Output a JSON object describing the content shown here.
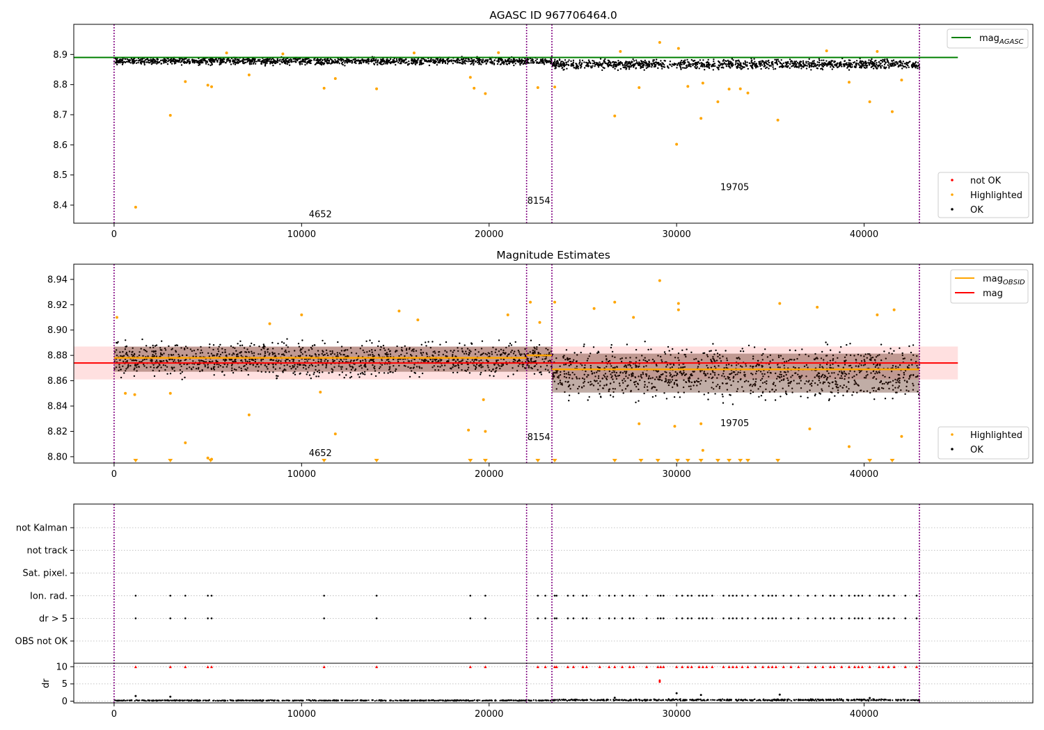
{
  "chart_data": [
    {
      "type": "scatter",
      "title": "AGASC ID 967706464.0",
      "xlim": [
        -2150,
        49000
      ],
      "ylim": [
        8.34,
        9.0
      ],
      "x_ticks": [
        {
          "value": 0,
          "label": "0"
        },
        {
          "value": 10000,
          "label": "10000"
        },
        {
          "value": 20000,
          "label": "20000"
        },
        {
          "value": 30000,
          "label": "30000"
        },
        {
          "value": 40000,
          "label": "40000"
        }
      ],
      "y_ticks": [
        {
          "value": 8.4,
          "label": "8.4"
        },
        {
          "value": 8.5,
          "label": "8.5"
        },
        {
          "value": 8.6,
          "label": "8.6"
        },
        {
          "value": 8.7,
          "label": "8.7"
        },
        {
          "value": 8.8,
          "label": "8.8"
        },
        {
          "value": 8.9,
          "label": "8.9"
        }
      ],
      "obsid_boundaries": [
        0,
        22000,
        23350,
        42950
      ],
      "obsid_labels": [
        {
          "text": "4652",
          "x": 11000,
          "y": 8.36
        },
        {
          "text": "8154",
          "x": 22650,
          "y": 8.405
        },
        {
          "text": "19705",
          "x": 33100,
          "y": 8.45
        }
      ],
      "reference_lines": [
        {
          "name": "mag",
          "subscript": "AGASC",
          "y": 8.89,
          "color": "#008000",
          "x_range": [
            -2150,
            45000
          ]
        }
      ],
      "ok_bands": [
        {
          "x_range": [
            0,
            23350
          ],
          "center": 8.878,
          "half_width": 0.017,
          "density": 0.06
        },
        {
          "x_range": [
            23350,
            42950
          ],
          "center": 8.867,
          "half_width": 0.022,
          "density": 0.06
        }
      ],
      "highlighted_points": [
        [
          1150,
          8.393
        ],
        [
          3000,
          8.698
        ],
        [
          3800,
          8.81
        ],
        [
          5000,
          8.798
        ],
        [
          5200,
          8.793
        ],
        [
          7200,
          8.832
        ],
        [
          11200,
          8.788
        ],
        [
          11800,
          8.82
        ],
        [
          14000,
          8.786
        ],
        [
          19000,
          8.824
        ],
        [
          19200,
          8.788
        ],
        [
          19800,
          8.77
        ],
        [
          22600,
          8.79
        ],
        [
          23500,
          8.792
        ],
        [
          26700,
          8.696
        ],
        [
          28000,
          8.79
        ],
        [
          29100,
          8.94
        ],
        [
          30000,
          8.602
        ],
        [
          30600,
          8.794
        ],
        [
          31300,
          8.688
        ],
        [
          31400,
          8.805
        ],
        [
          32200,
          8.743
        ],
        [
          32800,
          8.785
        ],
        [
          33400,
          8.786
        ],
        [
          33800,
          8.772
        ],
        [
          35400,
          8.682
        ],
        [
          39200,
          8.808
        ],
        [
          40300,
          8.743
        ],
        [
          41500,
          8.71
        ],
        [
          42000,
          8.815
        ],
        [
          6000,
          8.905
        ],
        [
          9000,
          8.902
        ],
        [
          16000,
          8.905
        ],
        [
          20500,
          8.906
        ],
        [
          27000,
          8.91
        ],
        [
          30100,
          8.92
        ],
        [
          38000,
          8.912
        ],
        [
          40700,
          8.91
        ]
      ],
      "legends": [
        {
          "position": "top-right",
          "entries": [
            {
              "label": "mag",
              "subscript": "AGASC",
              "color": "#008000",
              "marker": "line"
            }
          ]
        },
        {
          "position": "bottom-right",
          "entries": [
            {
              "label": "not OK",
              "color": "#ff0000",
              "marker": "dot"
            },
            {
              "label": "Highlighted",
              "color": "#ffa500",
              "marker": "dot"
            },
            {
              "label": "OK",
              "color": "#000000",
              "marker": "dot"
            }
          ]
        }
      ]
    },
    {
      "type": "scatter",
      "title": "Magnitude Estimates",
      "xlim": [
        -2150,
        49000
      ],
      "ylim": [
        8.795,
        8.952
      ],
      "x_ticks": [
        {
          "value": 0,
          "label": "0"
        },
        {
          "value": 10000,
          "label": "10000"
        },
        {
          "value": 20000,
          "label": "20000"
        },
        {
          "value": 30000,
          "label": "30000"
        },
        {
          "value": 40000,
          "label": "40000"
        }
      ],
      "y_ticks": [
        {
          "value": 8.8,
          "label": "8.80"
        },
        {
          "value": 8.82,
          "label": "8.82"
        },
        {
          "value": 8.84,
          "label": "8.84"
        },
        {
          "value": 8.86,
          "label": "8.86"
        },
        {
          "value": 8.88,
          "label": "8.88"
        },
        {
          "value": 8.9,
          "label": "8.90"
        },
        {
          "value": 8.92,
          "label": "8.92"
        },
        {
          "value": 8.94,
          "label": "8.94"
        }
      ],
      "obsid_boundaries": [
        0,
        22000,
        23350,
        42950
      ],
      "obsid_labels": [
        {
          "text": "4652",
          "x": 11000,
          "y": 8.8005
        },
        {
          "text": "8154",
          "x": 22650,
          "y": 8.813
        },
        {
          "text": "19705",
          "x": 33100,
          "y": 8.824
        }
      ],
      "mag_line": {
        "name": "mag",
        "y": 8.874,
        "color": "#ff0000",
        "band": [
          8.861,
          8.887
        ],
        "x_range": [
          -2150,
          45000
        ]
      },
      "obsid_mags": {
        "name": "mag",
        "subscript": "OBSID",
        "color": "#ffa500",
        "segments": [
          {
            "x_range": [
              0,
              22000
            ],
            "y": 8.878
          },
          {
            "x_range": [
              22000,
              23350
            ],
            "y": 8.88
          },
          {
            "x_range": [
              23350,
              42950
            ],
            "y": 8.869
          }
        ]
      },
      "ok_bands": [
        {
          "x_range": [
            0,
            23350
          ],
          "center": 8.877,
          "half_width": 0.018,
          "density": 0.06
        },
        {
          "x_range": [
            23350,
            42950
          ],
          "center": 8.866,
          "half_width": 0.028,
          "density": 0.06
        }
      ],
      "highlighted_points": [
        [
          150,
          8.91
        ],
        [
          600,
          8.85
        ],
        [
          1100,
          8.849
        ],
        [
          3000,
          8.85
        ],
        [
          3800,
          8.811
        ],
        [
          5000,
          8.799
        ],
        [
          5200,
          8.798
        ],
        [
          7200,
          8.833
        ],
        [
          8300,
          8.905
        ],
        [
          10000,
          8.912
        ],
        [
          11000,
          8.851
        ],
        [
          11800,
          8.818
        ],
        [
          15200,
          8.915
        ],
        [
          16200,
          8.908
        ],
        [
          18900,
          8.821
        ],
        [
          19700,
          8.845
        ],
        [
          19800,
          8.82
        ],
        [
          21000,
          8.912
        ],
        [
          22200,
          8.922
        ],
        [
          22700,
          8.906
        ],
        [
          23500,
          8.922
        ],
        [
          25600,
          8.917
        ],
        [
          26700,
          8.922
        ],
        [
          27700,
          8.91
        ],
        [
          28000,
          8.826
        ],
        [
          29100,
          8.939
        ],
        [
          29900,
          8.824
        ],
        [
          30100,
          8.921
        ],
        [
          30100,
          8.916
        ],
        [
          31300,
          8.826
        ],
        [
          31400,
          8.805
        ],
        [
          35500,
          8.921
        ],
        [
          37100,
          8.822
        ],
        [
          37500,
          8.918
        ],
        [
          39200,
          8.808
        ],
        [
          40700,
          8.912
        ],
        [
          41600,
          8.916
        ],
        [
          42000,
          8.816
        ]
      ],
      "clipped_markers": [
        1150,
        3000,
        5150,
        11200,
        14000,
        19000,
        19800,
        22600,
        23500,
        26700,
        28100,
        29000,
        30050,
        30600,
        31300,
        32200,
        32800,
        33400,
        33800,
        35400,
        40300,
        41500
      ],
      "legends": [
        {
          "position": "top-right",
          "entries": [
            {
              "label": "mag",
              "subscript": "OBSID",
              "color": "#ffa500",
              "marker": "line"
            },
            {
              "label": "mag",
              "subscript": "",
              "color": "#ff0000",
              "marker": "line"
            }
          ]
        },
        {
          "position": "bottom-right",
          "entries": [
            {
              "label": "Highlighted",
              "color": "#ffa500",
              "marker": "dot"
            },
            {
              "label": "OK",
              "color": "#000000",
              "marker": "dot"
            }
          ]
        }
      ]
    },
    {
      "type": "scatter",
      "title": "",
      "xlim": [
        -2150,
        49000
      ],
      "x_ticks": [
        {
          "value": 0,
          "label": "0"
        },
        {
          "value": 10000,
          "label": "10000"
        },
        {
          "value": 20000,
          "label": "20000"
        },
        {
          "value": 30000,
          "label": "30000"
        },
        {
          "value": 40000,
          "label": "40000"
        }
      ],
      "obsid_boundaries": [
        0,
        22000,
        23350,
        42950
      ],
      "flag_rows": [
        "not Kalman",
        "not track",
        "Sat. pixel.",
        "Ion. rad.",
        "dr > 5",
        "OBS not OK"
      ],
      "flag_x": [
        1150,
        3000,
        3800,
        5000,
        5200,
        11200,
        14000,
        19000,
        19800,
        22600,
        23000,
        23500,
        23600,
        24200,
        24500,
        25000,
        25200,
        25900,
        26400,
        26700,
        27100,
        27500,
        27700,
        28400,
        29000,
        29150,
        29300,
        30000,
        30300,
        30600,
        30800,
        31200,
        31400,
        31600,
        31900,
        32500,
        32800,
        33000,
        33200,
        33500,
        33800,
        34200,
        34600,
        34900,
        35100,
        35300,
        35700,
        36100,
        36500,
        37000,
        37400,
        37800,
        38200,
        38400,
        38800,
        39200,
        39500,
        39700,
        39900,
        40300,
        40800,
        41000,
        41300,
        41600,
        42200,
        42800
      ],
      "dr": {
        "ylabel": "dr",
        "ylim": [
          -0.5,
          11
        ],
        "y_ticks": [
          {
            "value": 0,
            "label": "0"
          },
          {
            "value": 5,
            "label": "5"
          },
          {
            "value": 10,
            "label": "10"
          }
        ],
        "clip_value": 10,
        "outliers": [
          [
            1150,
            1.5
          ],
          [
            3000,
            1.3
          ],
          [
            26700,
            1.0
          ],
          [
            29100,
            6.0
          ],
          [
            29100,
            5.6
          ],
          [
            30000,
            2.3
          ],
          [
            31300,
            1.8
          ],
          [
            35500,
            1.9
          ],
          [
            40300,
            0.9
          ]
        ],
        "baseline": [
          {
            "x_range": [
              0,
              23350
            ],
            "center": 0.2,
            "spread": 0.2
          },
          {
            "x_range": [
              23350,
              42950
            ],
            "center": 0.35,
            "spread": 0.35
          }
        ]
      }
    }
  ]
}
